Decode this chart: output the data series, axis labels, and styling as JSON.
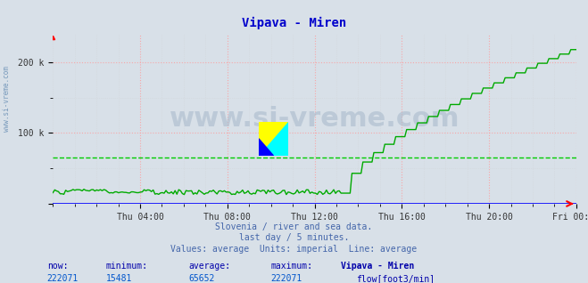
{
  "title": "Vipava - Miren",
  "title_color": "#0000cc",
  "bg_color": "#d8e0e8",
  "plot_bg_color": "#d8e0e8",
  "grid_color_major": "#ff9999",
  "grid_color_minor": "#dddddd",
  "x_axis_color": "#0000ff",
  "y_axis_color": "#0000ff",
  "line_color": "#00aa00",
  "average_line_color": "#00cc00",
  "average_value": 65652,
  "y_min": 0,
  "y_max": 240000,
  "y_ticks": [
    0,
    100000,
    200000
  ],
  "y_tick_labels": [
    "",
    "100 k",
    "200 k"
  ],
  "x_ticks_labels": [
    "Thu 04:00",
    "Thu 08:00",
    "Thu 12:00",
    "Thu 16:00",
    "Thu 20:00",
    "Fri 00:00"
  ],
  "subtitle1": "Slovenia / river and sea data.",
  "subtitle2": "last day / 5 minutes.",
  "subtitle3": "Values: average  Units: imperial  Line: average",
  "subtitle_color": "#4466aa",
  "stats_label_color": "#0000aa",
  "stats_value_color": "#0055cc",
  "stats_now": "222071",
  "stats_min": "15481",
  "stats_avg": "65652",
  "stats_max": "222071",
  "watermark_text": "www.si-vreme.com",
  "watermark_color": "#aabbcc",
  "sidebar_text": "www.si-vreme.com",
  "sidebar_color": "#7799bb"
}
